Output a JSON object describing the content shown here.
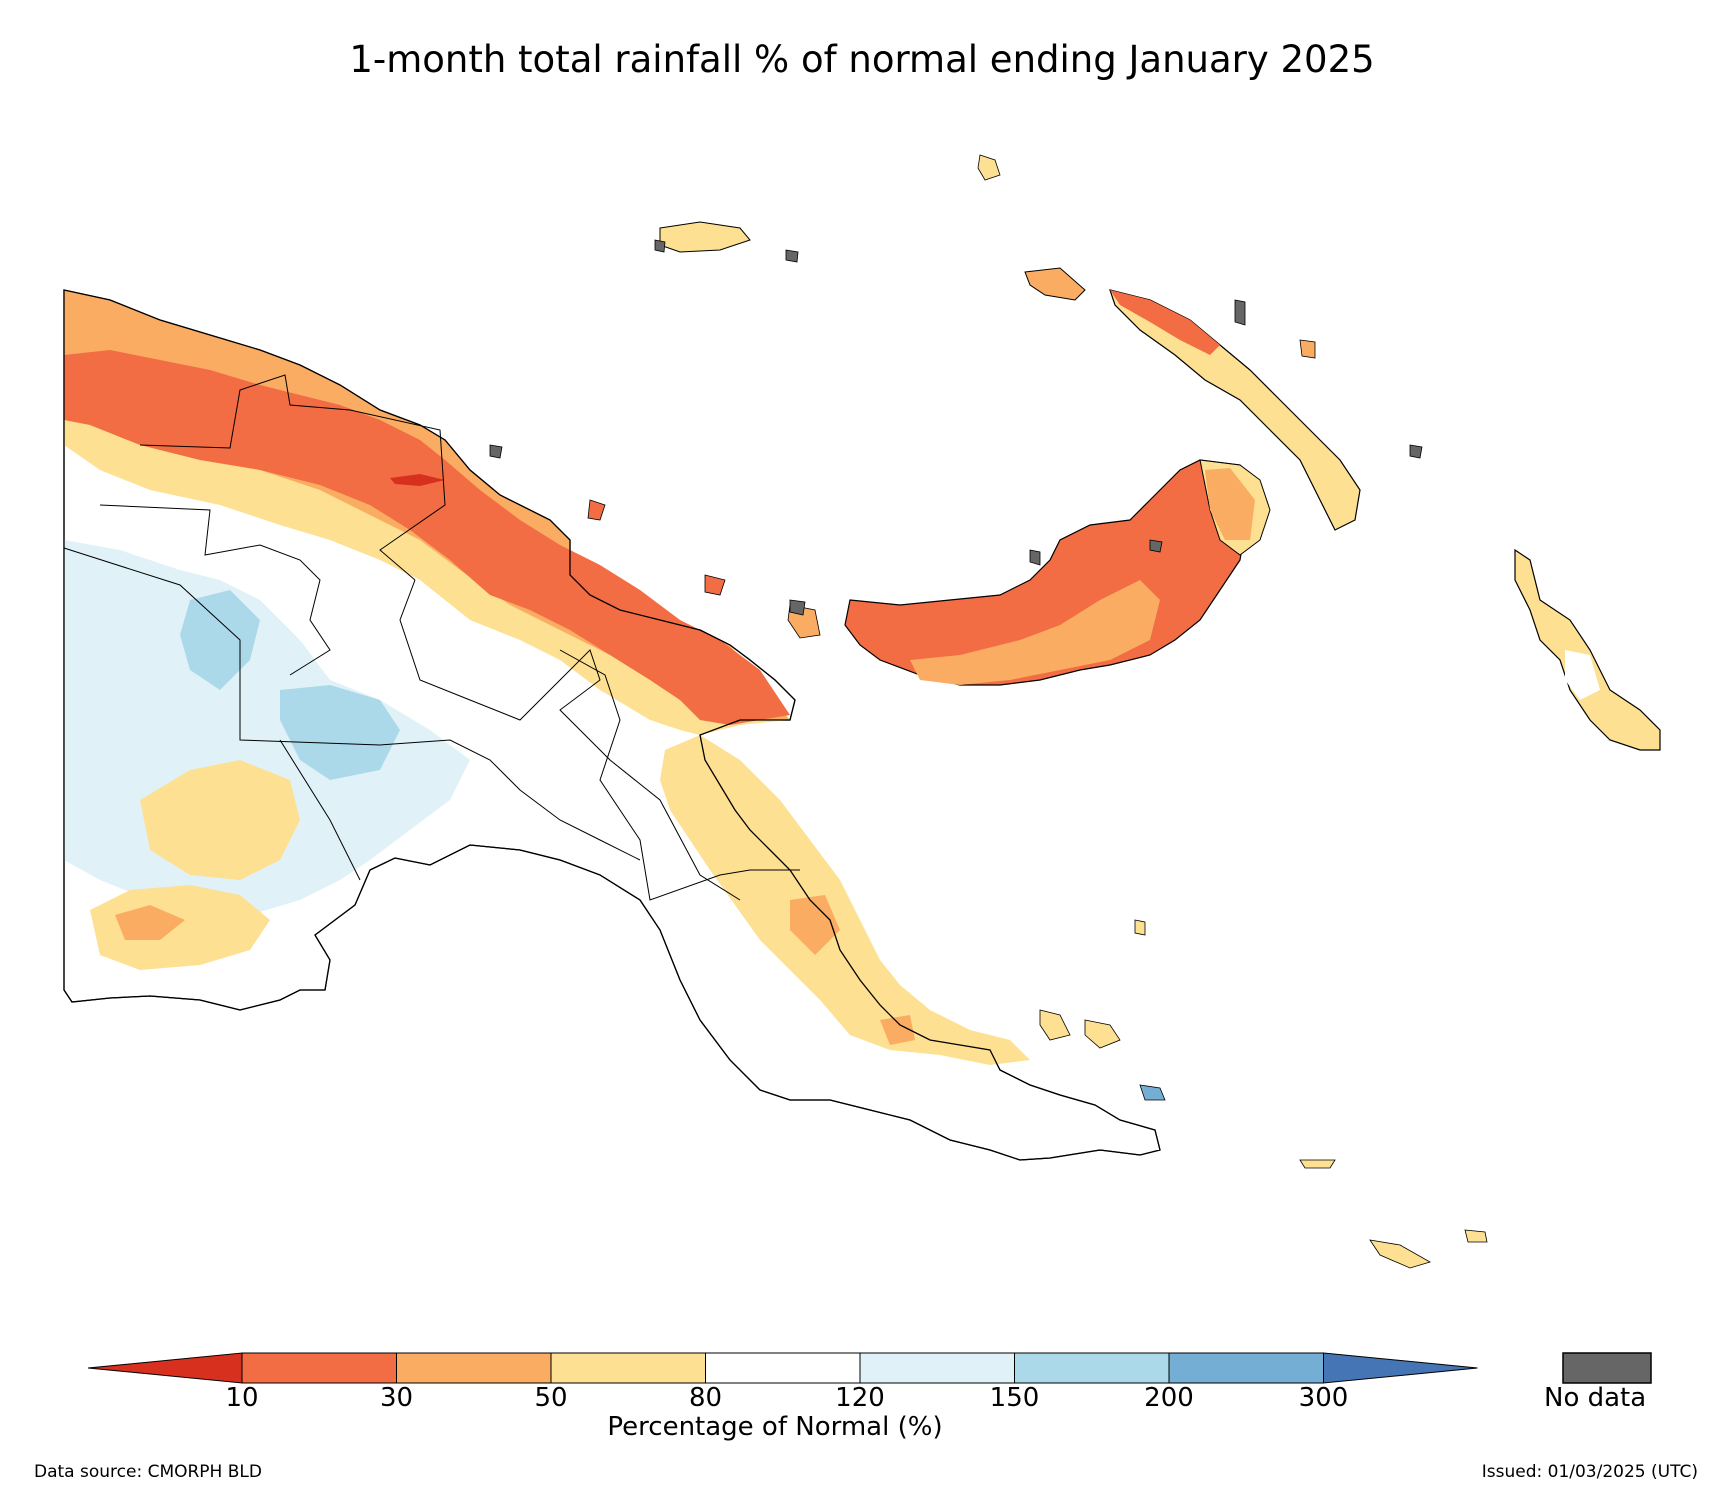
{
  "title": "1-month total rainfall % of normal ending January 2025",
  "legend": {
    "title": "Percentage of Normal (%)",
    "ticks": [
      "10",
      "30",
      "50",
      "80",
      "120",
      "150",
      "200",
      "300"
    ],
    "bins": [
      {
        "range": "<10",
        "color": "#d7301f"
      },
      {
        "range": "10-30",
        "color": "#f26c44"
      },
      {
        "range": "30-50",
        "color": "#f9ac62"
      },
      {
        "range": "50-80",
        "color": "#fde092"
      },
      {
        "range": "80-120",
        "color": "#ffffff"
      },
      {
        "range": "120-150",
        "color": "#e0f2f8"
      },
      {
        "range": "150-200",
        "color": "#acd9e9"
      },
      {
        "range": "200-300",
        "color": "#74aed4"
      },
      {
        "range": ">300",
        "color": "#4575b4"
      }
    ],
    "no_data_label": "No data",
    "no_data_color": "#666666"
  },
  "footer": {
    "source": "Data source: CMORPH BLD",
    "issued": "Issued: 01/03/2025 (UTC)"
  },
  "map_regions": [
    {
      "name": "mainland-north-coast-band",
      "category": "10-30"
    },
    {
      "name": "new-britain",
      "category": "10-30"
    },
    {
      "name": "new-ireland",
      "category": "50-80"
    },
    {
      "name": "manus",
      "category": "50-80"
    },
    {
      "name": "bougainville",
      "category": "50-80"
    },
    {
      "name": "western-highlands",
      "category": "150-200"
    },
    {
      "name": "southern-lowlands",
      "category": "50-80"
    },
    {
      "name": "papuan-peninsula",
      "category": "50-80"
    },
    {
      "name": "dry-spot-north",
      "category": "<10"
    }
  ]
}
